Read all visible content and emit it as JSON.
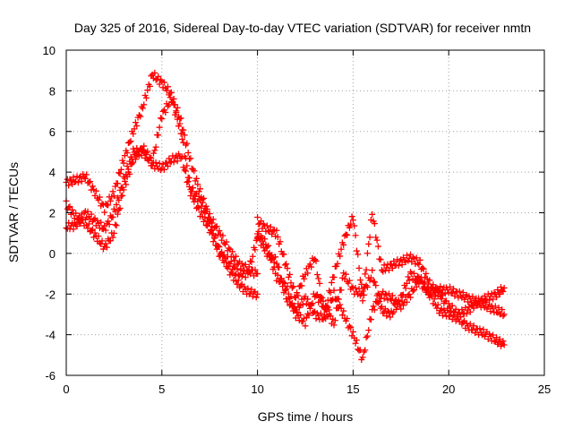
{
  "chart_data": {
    "type": "scatter",
    "title": "Day 325 of 2016, Sidereal Day-to-day VTEC variation (SDTVAR) for receiver nmtn",
    "xlabel": "GPS time / hours",
    "ylabel": "SDTVAR / TECUs",
    "xlim": [
      0,
      25
    ],
    "ylim": [
      -6,
      10
    ],
    "xticks": [
      0,
      5,
      10,
      15,
      20,
      25
    ],
    "yticks": [
      -6,
      -4,
      -2,
      0,
      2,
      4,
      6,
      8,
      10
    ],
    "grid": true,
    "marker": "+",
    "color": "#ff0000",
    "series": [
      {
        "x": [
          0.0,
          0.5,
          1.0,
          1.5,
          2.0,
          2.5,
          3.0,
          3.5,
          4.0,
          4.5,
          5.0,
          5.5,
          6.0,
          6.5,
          7.0,
          7.5,
          8.0,
          8.5,
          9.0,
          9.5,
          10.0
        ],
        "y": [
          3.5,
          3.6,
          3.8,
          3.0,
          2.2,
          3.0,
          4.6,
          6.0,
          7.2,
          8.8,
          8.4,
          7.8,
          6.5,
          4.5,
          3.0,
          1.8,
          1.0,
          0.2,
          -0.5,
          -0.8,
          -1.0
        ]
      },
      {
        "x": [
          0.0,
          0.5,
          1.0,
          1.5,
          2.0,
          2.5,
          3.0,
          3.5,
          4.0,
          4.5,
          5.0,
          5.5,
          6.0,
          6.5,
          7.0,
          7.5,
          8.0,
          8.5,
          9.0,
          9.5,
          10.0
        ],
        "y": [
          2.4,
          1.8,
          1.5,
          0.9,
          0.3,
          1.0,
          3.2,
          4.6,
          5.2,
          4.5,
          6.8,
          7.6,
          6.0,
          3.2,
          2.6,
          1.5,
          0.2,
          -0.8,
          -1.5,
          -1.9,
          -2.0
        ]
      },
      {
        "x": [
          0.0,
          0.5,
          1.0,
          1.5,
          2.0,
          2.5,
          3.0,
          3.5,
          4.0,
          4.5,
          5.0,
          5.5,
          6.0,
          6.5,
          7.0,
          7.5,
          8.0,
          8.5,
          9.0,
          9.5,
          10.0
        ],
        "y": [
          1.3,
          1.4,
          2.0,
          1.6,
          1.2,
          2.0,
          3.6,
          5.0,
          5.0,
          4.4,
          4.2,
          4.6,
          4.8,
          3.0,
          2.0,
          1.2,
          0.0,
          -0.4,
          -1.0,
          -1.0,
          0.8
        ]
      },
      {
        "x": [
          10.0,
          10.5,
          11.0,
          11.5,
          12.0,
          12.5,
          13.0,
          13.5,
          14.0,
          14.5,
          15.0,
          15.5,
          16.0,
          16.5,
          17.0,
          17.5,
          18.0,
          18.5,
          19.0,
          19.5,
          20.0,
          20.5,
          21.0,
          21.5,
          22.0,
          22.5,
          22.9
        ],
        "y": [
          0.9,
          0.0,
          -0.4,
          -2.2,
          -2.8,
          -2.2,
          -3.0,
          -3.2,
          -2.0,
          -3.0,
          -4.0,
          -5.2,
          -2.8,
          -2.0,
          -2.2,
          -2.6,
          -2.0,
          -1.2,
          -2.0,
          -2.8,
          -3.0,
          -3.2,
          -3.6,
          -3.8,
          -4.0,
          -4.3,
          -4.5
        ]
      },
      {
        "x": [
          10.0,
          10.5,
          11.0,
          11.5,
          12.0,
          12.5,
          13.0,
          13.5,
          14.0,
          14.5,
          15.0,
          15.5,
          16.0,
          16.5,
          17.0,
          17.5,
          18.0,
          18.5,
          19.0,
          19.5,
          20.0,
          20.5,
          21.0,
          21.5,
          22.0,
          22.5,
          22.9
        ],
        "y": [
          1.0,
          0.4,
          -1.2,
          -1.6,
          -3.0,
          -3.4,
          -2.0,
          -2.6,
          -3.5,
          -1.0,
          -1.8,
          -2.0,
          -1.0,
          -2.8,
          -3.0,
          -2.2,
          -1.0,
          -1.4,
          -2.0,
          -1.8,
          -1.8,
          -2.0,
          -2.2,
          -2.4,
          -2.6,
          -2.8,
          -3.0
        ]
      },
      {
        "x": [
          10.0,
          10.5,
          11.0,
          11.5,
          12.0,
          12.5,
          13.0,
          13.5,
          14.0,
          14.5,
          15.0,
          15.5,
          16.0,
          16.5,
          17.0,
          17.5,
          18.0,
          18.5,
          19.0,
          19.5,
          20.0,
          20.5,
          21.0,
          21.5,
          22.0,
          22.5,
          22.9
        ],
        "y": [
          1.6,
          1.2,
          1.0,
          -0.6,
          -2.2,
          -1.0,
          -0.2,
          -3.0,
          -1.0,
          0.6,
          1.8,
          -2.2,
          2.0,
          -0.8,
          -0.6,
          -0.4,
          -0.2,
          -0.5,
          -1.5,
          -2.0,
          -2.6,
          -3.0,
          -2.8,
          -2.4,
          -2.2,
          -2.0,
          -1.7
        ]
      }
    ]
  }
}
